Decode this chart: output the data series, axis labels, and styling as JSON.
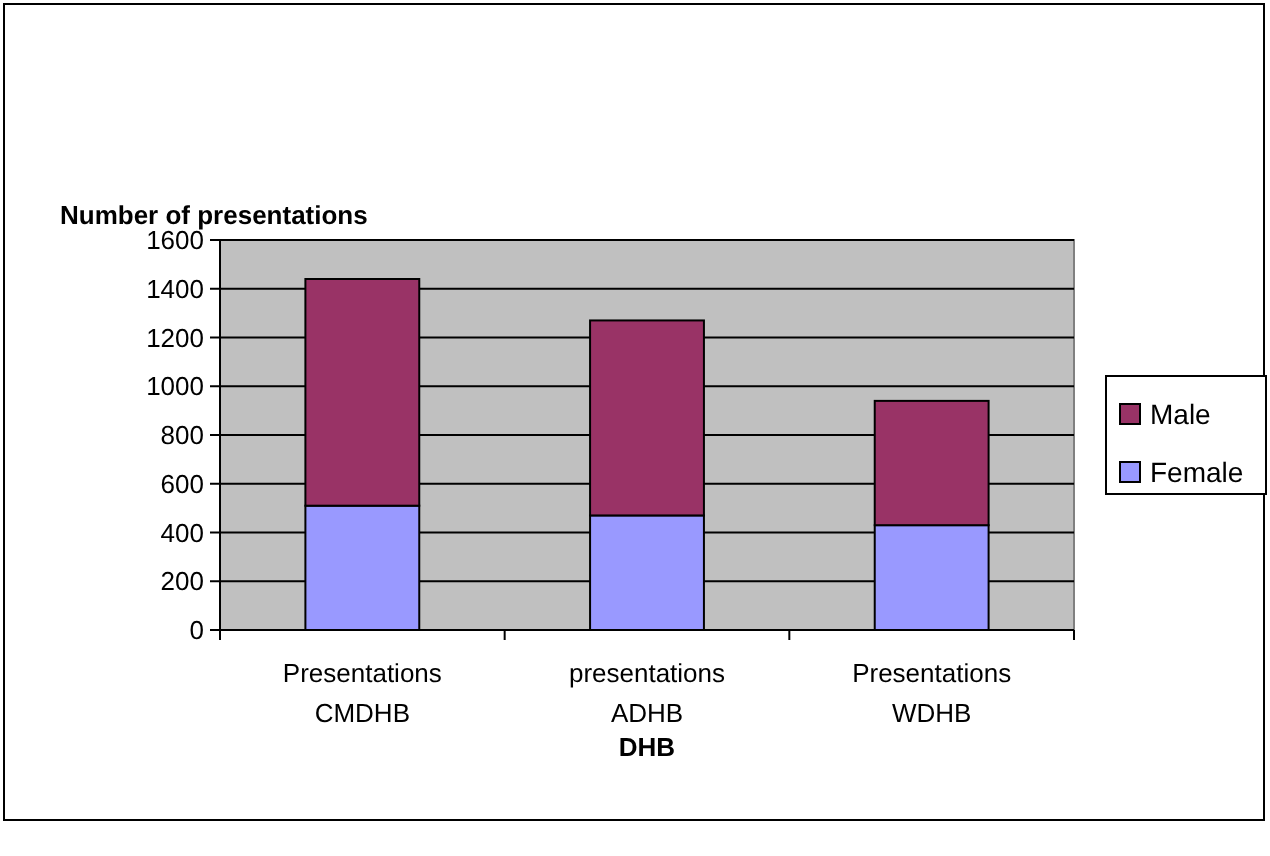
{
  "chart_data": {
    "type": "bar",
    "stacked": true,
    "ylabel": "Number of presentations",
    "xlabel": "DHB",
    "categories": [
      "Presentations CMDHB",
      "presentations ADHB",
      "Presentations WDHB"
    ],
    "series": [
      {
        "name": "Female",
        "color": "#9999ff",
        "values": [
          510,
          470,
          430
        ]
      },
      {
        "name": "Male",
        "color": "#993366",
        "values": [
          930,
          800,
          510
        ]
      }
    ],
    "ylim": [
      0,
      1600
    ],
    "yticks": [
      0,
      200,
      400,
      600,
      800,
      1000,
      1200,
      1400,
      1600
    ],
    "grid": "y",
    "legend": "right"
  }
}
